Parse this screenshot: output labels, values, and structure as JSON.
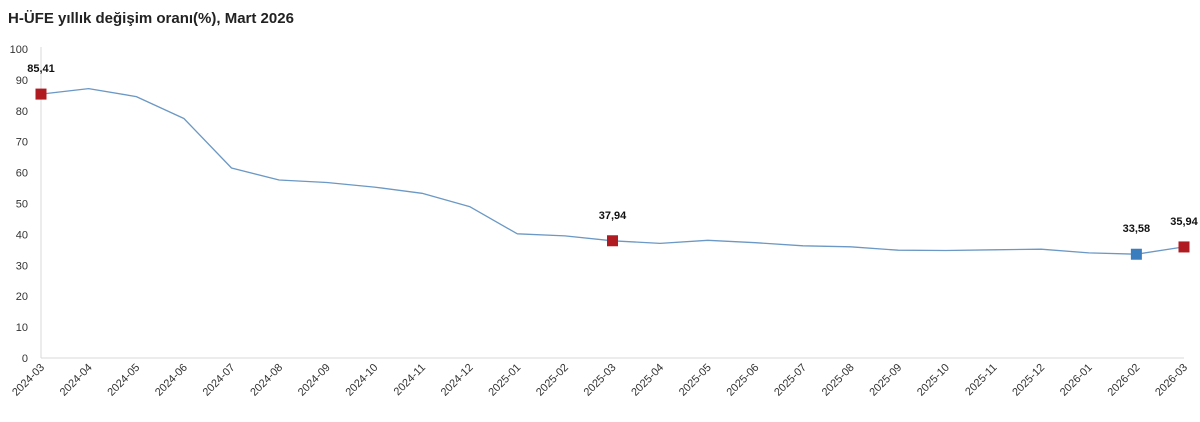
{
  "chart_data": {
    "type": "line",
    "title": "H-ÜFE yıllık değişim oranı(%), Mart 2026",
    "xlabel": "",
    "ylabel": "",
    "ylim": [
      0,
      100
    ],
    "yticks": [
      "0",
      "10",
      "20",
      "30",
      "40",
      "50",
      "60",
      "70",
      "80",
      "90",
      "100"
    ],
    "grid": false,
    "line_color": "#6b98c4",
    "categories": [
      "2024-03",
      "2024-04",
      "2024-05",
      "2024-06",
      "2024-07",
      "2024-08",
      "2024-09",
      "2024-10",
      "2024-11",
      "2024-12",
      "2025-01",
      "2025-02",
      "2025-03",
      "2025-04",
      "2025-05",
      "2025-06",
      "2025-07",
      "2025-08",
      "2025-09",
      "2025-10",
      "2025-11",
      "2025-12",
      "2026-01",
      "2026-02",
      "2026-03"
    ],
    "values": [
      85.41,
      87.2,
      84.6,
      77.5,
      61.5,
      57.6,
      56.8,
      55.3,
      53.3,
      49.0,
      40.2,
      39.5,
      37.94,
      37.1,
      38.1,
      37.3,
      36.3,
      36.0,
      34.9,
      34.8,
      35.0,
      35.2,
      34.0,
      33.58,
      35.94
    ],
    "markers": [
      {
        "index": 0,
        "label": "85,41",
        "color": "#b01b22"
      },
      {
        "index": 12,
        "label": "37,94",
        "color": "#b01b22"
      },
      {
        "index": 23,
        "label": "33,58",
        "color": "#3a7dbf"
      },
      {
        "index": 24,
        "label": "35,94",
        "color": "#b01b22"
      }
    ]
  }
}
